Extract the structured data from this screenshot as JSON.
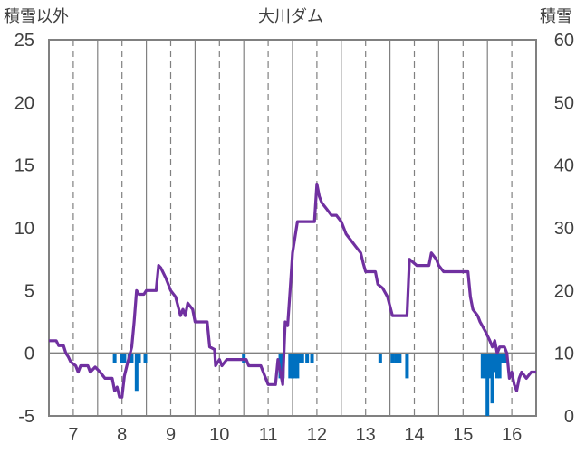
{
  "chart_data": {
    "type": "line",
    "title": "大川ダム",
    "y_left_label": "積雪以外",
    "y_right_label": "積雪",
    "x_ticks": [
      "7",
      "8",
      "9",
      "10",
      "11",
      "12",
      "13",
      "14",
      "15",
      "16"
    ],
    "xlim": [
      6.5,
      16.5
    ],
    "ylim_left": [
      -5,
      25
    ],
    "ylim_right": [
      0,
      60
    ],
    "y_left_ticks": [
      -5,
      0,
      5,
      10,
      15,
      20,
      25
    ],
    "y_right_ticks": [
      0,
      10,
      20,
      30,
      40,
      50,
      60
    ],
    "grid": {
      "vertical_dashed_at_ticks": true,
      "vertical_solid_between": true
    },
    "colors": {
      "line": "#7030A0",
      "bars": "#0070C0",
      "axis": "#808080",
      "grid": "#808080"
    },
    "series": [
      {
        "kind": "line",
        "axis": "left",
        "points": [
          [
            6.5,
            1.0
          ],
          [
            6.65,
            1.0
          ],
          [
            6.7,
            0.6
          ],
          [
            6.8,
            0.6
          ],
          [
            6.85,
            0.0
          ],
          [
            6.9,
            -0.3
          ],
          [
            6.95,
            -0.7
          ],
          [
            7.05,
            -1.0
          ],
          [
            7.1,
            -1.5
          ],
          [
            7.15,
            -1.0
          ],
          [
            7.3,
            -1.0
          ],
          [
            7.35,
            -1.5
          ],
          [
            7.45,
            -1.1
          ],
          [
            7.55,
            -1.5
          ],
          [
            7.65,
            -2.0
          ],
          [
            7.8,
            -2.0
          ],
          [
            7.85,
            -3.0
          ],
          [
            7.9,
            -2.7
          ],
          [
            7.95,
            -3.5
          ],
          [
            8.0,
            -3.5
          ],
          [
            8.05,
            -1.8
          ],
          [
            8.1,
            -1.0
          ],
          [
            8.2,
            0.5
          ],
          [
            8.25,
            2.5
          ],
          [
            8.3,
            5.0
          ],
          [
            8.35,
            4.7
          ],
          [
            8.45,
            4.7
          ],
          [
            8.5,
            5.0
          ],
          [
            8.7,
            5.0
          ],
          [
            8.75,
            7.0
          ],
          [
            8.8,
            6.8
          ],
          [
            8.9,
            6.0
          ],
          [
            9.0,
            5.0
          ],
          [
            9.1,
            4.5
          ],
          [
            9.2,
            3.0
          ],
          [
            9.25,
            3.5
          ],
          [
            9.3,
            3.0
          ],
          [
            9.35,
            4.0
          ],
          [
            9.45,
            3.5
          ],
          [
            9.5,
            2.5
          ],
          [
            9.75,
            2.5
          ],
          [
            9.8,
            0.5
          ],
          [
            9.9,
            0.3
          ],
          [
            9.92,
            -1.0
          ],
          [
            10.0,
            -0.5
          ],
          [
            10.05,
            -1.0
          ],
          [
            10.15,
            -0.5
          ],
          [
            10.55,
            -0.5
          ],
          [
            10.6,
            -1.0
          ],
          [
            10.85,
            -1.0
          ],
          [
            10.9,
            -1.5
          ],
          [
            11.0,
            -2.5
          ],
          [
            11.15,
            -2.5
          ],
          [
            11.2,
            -0.5
          ],
          [
            11.3,
            -2.5
          ],
          [
            11.35,
            2.5
          ],
          [
            11.4,
            2.2
          ],
          [
            11.45,
            5.0
          ],
          [
            11.5,
            8.0
          ],
          [
            11.6,
            10.5
          ],
          [
            11.95,
            10.5
          ],
          [
            12.0,
            13.5
          ],
          [
            12.05,
            12.5
          ],
          [
            12.1,
            12.0
          ],
          [
            12.2,
            11.5
          ],
          [
            12.3,
            11.0
          ],
          [
            12.4,
            11.0
          ],
          [
            12.5,
            10.5
          ],
          [
            12.6,
            9.5
          ],
          [
            12.7,
            9.0
          ],
          [
            12.8,
            8.5
          ],
          [
            12.9,
            8.0
          ],
          [
            12.95,
            7.2
          ],
          [
            13.0,
            6.5
          ],
          [
            13.2,
            6.5
          ],
          [
            13.25,
            5.5
          ],
          [
            13.35,
            5.2
          ],
          [
            13.45,
            4.5
          ],
          [
            13.55,
            3.0
          ],
          [
            13.85,
            3.0
          ],
          [
            13.9,
            7.5
          ],
          [
            14.05,
            7.0
          ],
          [
            14.3,
            7.0
          ],
          [
            14.35,
            8.0
          ],
          [
            14.45,
            7.5
          ],
          [
            14.5,
            7.0
          ],
          [
            14.6,
            6.5
          ],
          [
            15.1,
            6.5
          ],
          [
            15.15,
            4.5
          ],
          [
            15.2,
            3.5
          ],
          [
            15.3,
            3.0
          ],
          [
            15.35,
            2.5
          ],
          [
            15.45,
            1.8
          ],
          [
            15.55,
            1.0
          ],
          [
            15.6,
            0.5
          ],
          [
            15.65,
            1.0
          ],
          [
            15.7,
            0.0
          ],
          [
            15.75,
            0.5
          ],
          [
            15.85,
            0.5
          ],
          [
            15.9,
            0.0
          ],
          [
            15.95,
            -2.0
          ],
          [
            16.0,
            -1.5
          ],
          [
            16.05,
            -2.5
          ],
          [
            16.1,
            -3.0
          ],
          [
            16.15,
            -2.0
          ],
          [
            16.2,
            -1.5
          ],
          [
            16.3,
            -2.0
          ],
          [
            16.4,
            -1.5
          ],
          [
            16.5,
            -1.5
          ]
        ]
      },
      {
        "kind": "bar",
        "axis": "left",
        "bars": [
          [
            7.85,
            -0.8
          ],
          [
            8.0,
            -0.8
          ],
          [
            8.05,
            -0.8
          ],
          [
            8.15,
            -0.8
          ],
          [
            8.2,
            -0.8
          ],
          [
            8.3,
            -3.0
          ],
          [
            8.35,
            -0.8
          ],
          [
            8.48,
            -0.8
          ],
          [
            10.5,
            -0.8
          ],
          [
            11.25,
            -2.0
          ],
          [
            11.3,
            -2.0
          ],
          [
            11.45,
            -2.0
          ],
          [
            11.5,
            -2.0
          ],
          [
            11.55,
            -2.0
          ],
          [
            11.6,
            -2.0
          ],
          [
            11.65,
            -0.8
          ],
          [
            11.7,
            -0.8
          ],
          [
            11.8,
            -0.8
          ],
          [
            11.9,
            -0.8
          ],
          [
            13.3,
            -0.8
          ],
          [
            13.55,
            -0.8
          ],
          [
            13.62,
            -0.8
          ],
          [
            13.7,
            -0.8
          ],
          [
            13.85,
            -2.0
          ],
          [
            15.4,
            -2.0
          ],
          [
            15.45,
            -2.0
          ],
          [
            15.5,
            -5.0
          ],
          [
            15.55,
            -2.0
          ],
          [
            15.6,
            -4.0
          ],
          [
            15.65,
            -1.5
          ],
          [
            15.7,
            -2.0
          ],
          [
            15.75,
            -2.0
          ],
          [
            15.8,
            -0.8
          ],
          [
            15.88,
            -0.8
          ]
        ]
      }
    ]
  }
}
